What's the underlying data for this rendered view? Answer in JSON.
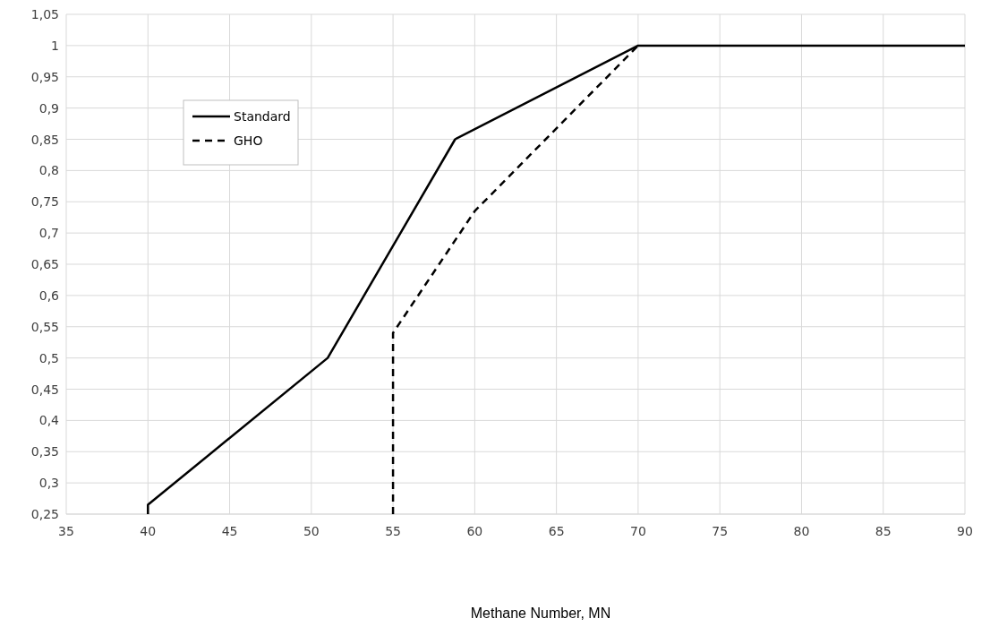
{
  "chart_data": {
    "type": "line",
    "xlabel": "Methane Number, MN",
    "xlim": [
      35,
      90
    ],
    "xticks": [
      35,
      40,
      45,
      50,
      55,
      60,
      65,
      70,
      75,
      80,
      85,
      90
    ],
    "ylim": [
      0.25,
      1.05
    ],
    "yticks": [
      {
        "value": 0.25,
        "label": "0,25"
      },
      {
        "value": 0.3,
        "label": "0,3"
      },
      {
        "value": 0.35,
        "label": "0,35"
      },
      {
        "value": 0.4,
        "label": "0,4"
      },
      {
        "value": 0.45,
        "label": "0,45"
      },
      {
        "value": 0.5,
        "label": "0,5"
      },
      {
        "value": 0.55,
        "label": "0,55"
      },
      {
        "value": 0.6,
        "label": "0,6"
      },
      {
        "value": 0.65,
        "label": "0,65"
      },
      {
        "value": 0.7,
        "label": "0,7"
      },
      {
        "value": 0.75,
        "label": "0,75"
      },
      {
        "value": 0.8,
        "label": "0,8"
      },
      {
        "value": 0.85,
        "label": "0,85"
      },
      {
        "value": 0.9,
        "label": "0,9"
      },
      {
        "value": 0.95,
        "label": "0,95"
      },
      {
        "value": 1,
        "label": "1"
      },
      {
        "value": 1.05,
        "label": "1,05"
      }
    ],
    "grid": true,
    "legend": "top left",
    "marker": "none",
    "series": [
      {
        "name": "Standard",
        "color": "#000000",
        "line_style": "solid",
        "x": [
          40,
          40,
          51,
          58.8,
          70,
          90
        ],
        "values": [
          0.25,
          0.265,
          0.5,
          0.85,
          1,
          1
        ]
      },
      {
        "name": "GHO",
        "color": "#000000",
        "line_style": "dashed",
        "x": [
          55,
          55,
          60,
          70
        ],
        "values": [
          0.25,
          0.54,
          0.735,
          1
        ]
      }
    ]
  }
}
